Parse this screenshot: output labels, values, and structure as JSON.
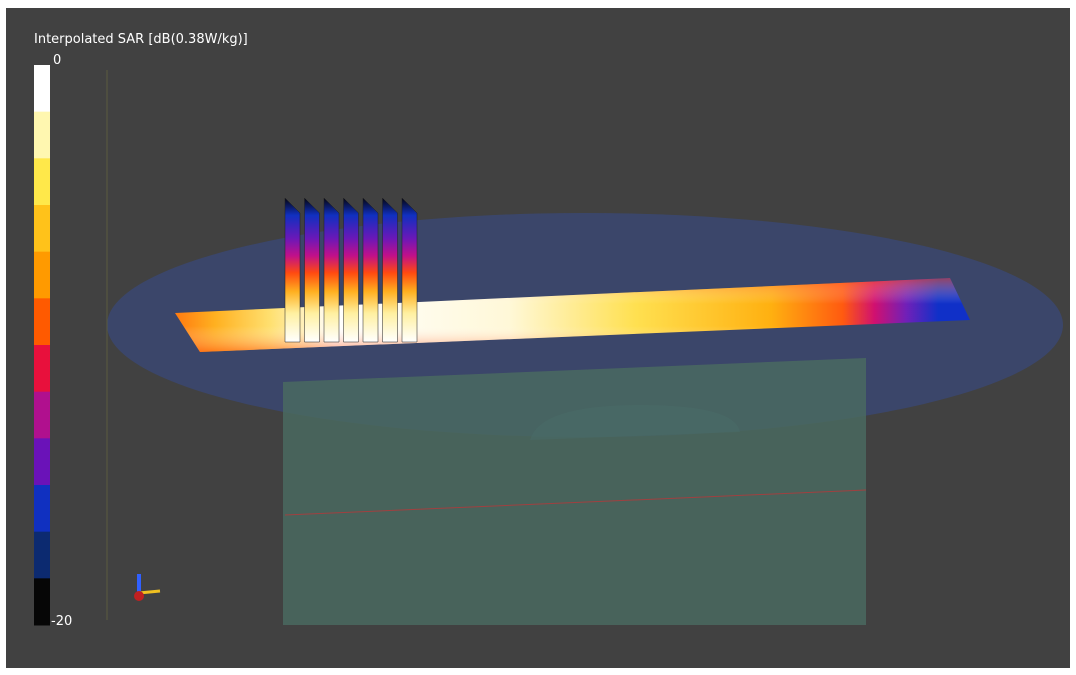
{
  "colorbar": {
    "title": "Interpolated SAR [dB(0.38W/kg)]",
    "max": 0,
    "min": -20,
    "colors": [
      "#ffffff",
      "#fff7b0",
      "#ffe84a",
      "#ffc21a",
      "#ff9a00",
      "#ff5a00",
      "#e8103c",
      "#b0108e",
      "#6a12b8",
      "#1030c0",
      "#0c2a70",
      "#060606"
    ]
  }
}
